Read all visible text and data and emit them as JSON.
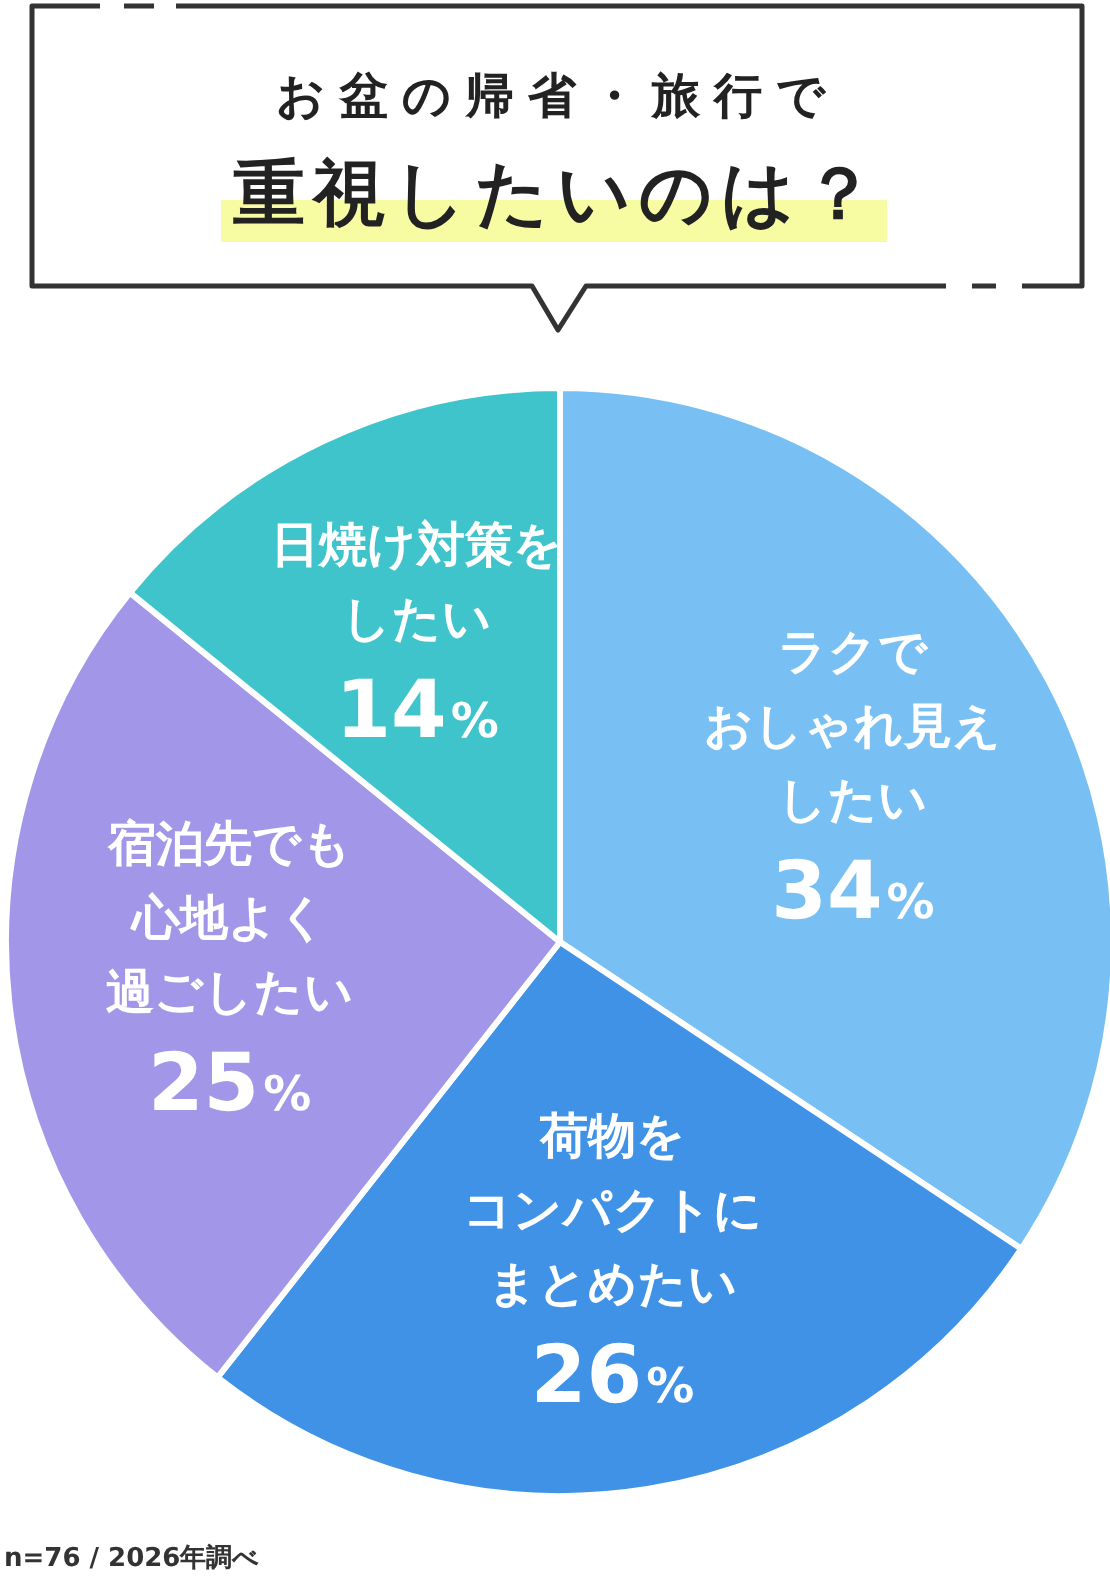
{
  "chart_data": {
    "type": "pie",
    "title": "お盆の帰省・旅行で",
    "subtitle": "重視したいのは？",
    "categories": [
      "ラクでおしゃれ見えしたい",
      "荷物をコンパクトにまとめたい",
      "宿泊先でも心地よく過ごしたい",
      "日焼け対策をしたい"
    ],
    "values": [
      34,
      26,
      25,
      14
    ],
    "value_labels": [
      "34%",
      "26%",
      "25%",
      "14%"
    ],
    "colors": [
      "#78c0f4",
      "#3f92e6",
      "#a296e8",
      "#3fc4cb"
    ],
    "annotations": [
      "n=76 / 2026年調べ"
    ]
  }
}
